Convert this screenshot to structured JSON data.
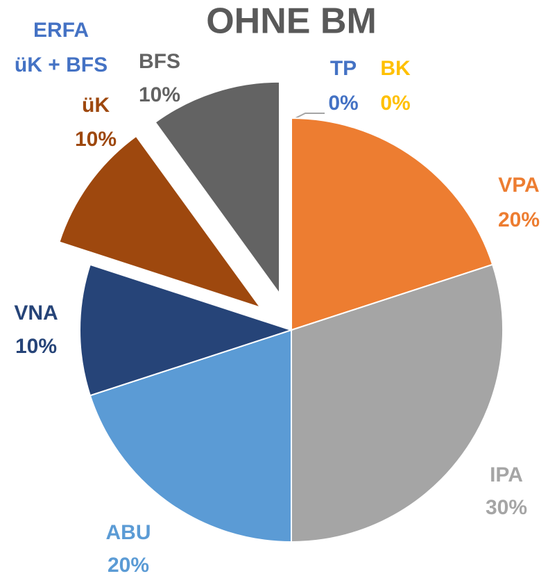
{
  "chart_data": {
    "type": "pie",
    "title": "OHNE BM",
    "annotations": [
      "ERFA",
      "üK + BFS"
    ],
    "categories": [
      "TP",
      "BK",
      "VPA",
      "IPA",
      "ABU",
      "VNA",
      "üK",
      "BFS"
    ],
    "values": [
      0,
      0,
      20,
      30,
      20,
      10,
      10,
      10
    ],
    "value_labels": [
      "0%",
      "0%",
      "20%",
      "30%",
      "20%",
      "10%",
      "10%",
      "10%"
    ],
    "colors": [
      "#4472c4",
      "#ffc000",
      "#ed7d31",
      "#a5a5a5",
      "#5b9bd5",
      "#264478",
      "#9e480e",
      "#636363"
    ],
    "exploded": [
      false,
      false,
      false,
      false,
      false,
      false,
      true,
      true
    ]
  }
}
